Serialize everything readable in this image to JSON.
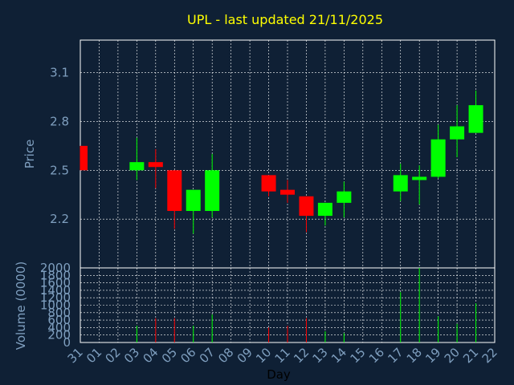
{
  "chart_data": {
    "type": "candlestick",
    "title": "UPL - last updated 21/11/2025",
    "ylabel": "Price",
    "volume_label": "Volume (0000)",
    "xlabel": "Day",
    "price_ticks": [
      "2.2",
      "2.5",
      "2.8",
      "3.1"
    ],
    "volume_ticks": [
      "0",
      "200",
      "400",
      "600",
      "800",
      "1000",
      "1200",
      "1400",
      "1600",
      "1800",
      "2000"
    ],
    "price_ylim": [
      1.9,
      3.3
    ],
    "volume_ylim": [
      0,
      2000
    ],
    "x_labels": [
      "31",
      "01",
      "02",
      "03",
      "04",
      "05",
      "06",
      "07",
      "08",
      "09",
      "10",
      "11",
      "12",
      "13",
      "14",
      "15",
      "16",
      "17",
      "18",
      "19",
      "20",
      "21",
      "22"
    ],
    "colors": {
      "up": "#00ff00",
      "down": "#ff0000",
      "grid": "#ffffff",
      "background": "#0f2035",
      "title": "#ffff00",
      "axis_text": "#7f9fbf"
    },
    "candles": [
      {
        "x": "31",
        "open": 2.65,
        "high": 2.65,
        "low": 2.5,
        "close": 2.5,
        "volume": 0
      },
      {
        "x": "03",
        "open": 2.5,
        "high": 2.7,
        "low": 2.44,
        "close": 2.55,
        "volume": 450
      },
      {
        "x": "04",
        "open": 2.55,
        "high": 2.63,
        "low": 2.39,
        "close": 2.52,
        "volume": 650
      },
      {
        "x": "05",
        "open": 2.5,
        "high": 2.5,
        "low": 2.14,
        "close": 2.25,
        "volume": 650
      },
      {
        "x": "06",
        "open": 2.25,
        "high": 2.38,
        "low": 2.11,
        "close": 2.38,
        "volume": 450
      },
      {
        "x": "07",
        "open": 2.25,
        "high": 2.6,
        "low": 2.21,
        "close": 2.5,
        "volume": 750
      },
      {
        "x": "10",
        "open": 2.47,
        "high": 2.47,
        "low": 2.34,
        "close": 2.37,
        "volume": 400
      },
      {
        "x": "11",
        "open": 2.38,
        "high": 2.44,
        "low": 2.3,
        "close": 2.35,
        "volume": 450
      },
      {
        "x": "12",
        "open": 2.34,
        "high": 2.34,
        "low": 2.12,
        "close": 2.22,
        "volume": 650
      },
      {
        "x": "13",
        "open": 2.22,
        "high": 2.3,
        "low": 2.16,
        "close": 2.3,
        "volume": 300
      },
      {
        "x": "14",
        "open": 2.3,
        "high": 2.43,
        "low": 2.21,
        "close": 2.37,
        "volume": 250
      },
      {
        "x": "17",
        "open": 2.37,
        "high": 2.54,
        "low": 2.31,
        "close": 2.47,
        "volume": 1350
      },
      {
        "x": "18",
        "open": 2.44,
        "high": 2.53,
        "low": 2.29,
        "close": 2.46,
        "volume": 2000
      },
      {
        "x": "19",
        "open": 2.46,
        "high": 2.78,
        "low": 2.45,
        "close": 2.69,
        "volume": 700
      },
      {
        "x": "20",
        "open": 2.69,
        "high": 2.9,
        "low": 2.58,
        "close": 2.77,
        "volume": 500
      },
      {
        "x": "21",
        "open": 2.73,
        "high": 2.99,
        "low": 2.73,
        "close": 2.9,
        "volume": 1050
      }
    ]
  }
}
